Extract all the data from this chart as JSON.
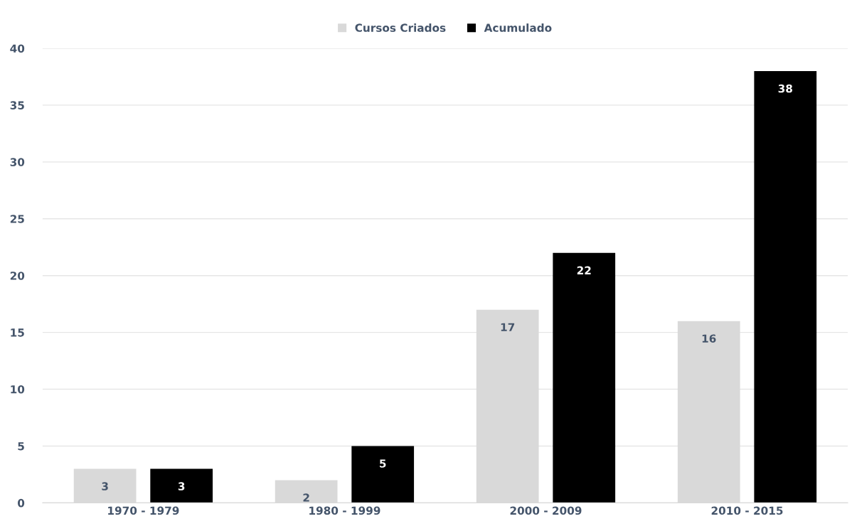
{
  "chart_data": {
    "type": "bar",
    "categories": [
      "1970 - 1979",
      "1980 - 1999",
      "2000 - 2009",
      "2010 - 2015"
    ],
    "series": [
      {
        "name": "Cursos Criados",
        "color": "#d9d9d9",
        "values": [
          3,
          2,
          17,
          16
        ]
      },
      {
        "name": "Acumulado",
        "color": "#000000",
        "values": [
          3,
          5,
          22,
          38
        ]
      }
    ],
    "ylim": [
      0,
      40
    ],
    "yticks": [
      0,
      5,
      10,
      15,
      20,
      25,
      30,
      35,
      40
    ],
    "grid": "y",
    "legend": "top",
    "data_labels": true
  }
}
